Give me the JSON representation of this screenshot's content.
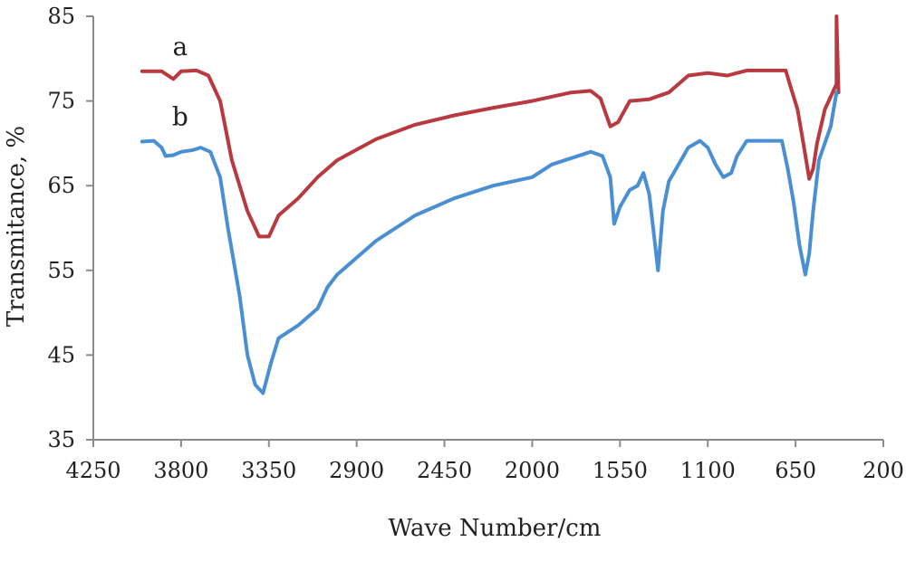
{
  "chart_data": {
    "type": "line",
    "title": "",
    "xlabel": "Wave Number/cm",
    "ylabel": "Transmitance, %",
    "xlim": [
      4250,
      200
    ],
    "ylim": [
      35,
      85
    ],
    "x_ticks": [
      "4250",
      "3800",
      "3350",
      "2900",
      "2450",
      "2000",
      "1550",
      "1100",
      "650",
      "200"
    ],
    "y_ticks": [
      "35",
      "45",
      "55",
      "65",
      "75",
      "85"
    ],
    "grid": false,
    "legend": "none",
    "series": [
      {
        "name": "a",
        "color": "#b8393f",
        "points": [
          [
            4000,
            78.5
          ],
          [
            3900,
            78.5
          ],
          [
            3840,
            77.6
          ],
          [
            3800,
            78.5
          ],
          [
            3720,
            78.6
          ],
          [
            3660,
            78.0
          ],
          [
            3600,
            75.0
          ],
          [
            3540,
            68.0
          ],
          [
            3460,
            62.0
          ],
          [
            3400,
            59.0
          ],
          [
            3350,
            59.0
          ],
          [
            3300,
            61.5
          ],
          [
            3200,
            63.5
          ],
          [
            3100,
            66.0
          ],
          [
            3000,
            68.0
          ],
          [
            2800,
            70.5
          ],
          [
            2600,
            72.2
          ],
          [
            2400,
            73.3
          ],
          [
            2200,
            74.2
          ],
          [
            2000,
            75.0
          ],
          [
            1800,
            76.0
          ],
          [
            1700,
            76.2
          ],
          [
            1650,
            75.3
          ],
          [
            1600,
            72.0
          ],
          [
            1560,
            72.5
          ],
          [
            1500,
            75.0
          ],
          [
            1400,
            75.2
          ],
          [
            1300,
            76.0
          ],
          [
            1200,
            78.0
          ],
          [
            1100,
            78.3
          ],
          [
            1000,
            78.0
          ],
          [
            950,
            78.3
          ],
          [
            900,
            78.6
          ],
          [
            700,
            78.6
          ],
          [
            680,
            77.0
          ],
          [
            640,
            74.0
          ],
          [
            610,
            70.0
          ],
          [
            580,
            65.8
          ],
          [
            560,
            67.0
          ],
          [
            540,
            70.0
          ],
          [
            500,
            74.0
          ],
          [
            460,
            76.0
          ],
          [
            440,
            77.0
          ],
          [
            440,
            85.0
          ],
          [
            430,
            76.0
          ]
        ]
      },
      {
        "name": "b",
        "color": "#4a8fd3",
        "points": [
          [
            4000,
            70.2
          ],
          [
            3940,
            70.3
          ],
          [
            3900,
            69.5
          ],
          [
            3880,
            68.5
          ],
          [
            3840,
            68.6
          ],
          [
            3800,
            69.0
          ],
          [
            3740,
            69.2
          ],
          [
            3700,
            69.5
          ],
          [
            3650,
            69.0
          ],
          [
            3600,
            66.0
          ],
          [
            3560,
            60.0
          ],
          [
            3500,
            52.0
          ],
          [
            3460,
            45.0
          ],
          [
            3420,
            41.5
          ],
          [
            3380,
            40.5
          ],
          [
            3340,
            44.0
          ],
          [
            3300,
            47.0
          ],
          [
            3200,
            48.5
          ],
          [
            3100,
            50.5
          ],
          [
            3050,
            53.0
          ],
          [
            3000,
            54.5
          ],
          [
            2900,
            56.5
          ],
          [
            2800,
            58.5
          ],
          [
            2600,
            61.5
          ],
          [
            2400,
            63.5
          ],
          [
            2200,
            65.0
          ],
          [
            2000,
            66.0
          ],
          [
            1900,
            67.5
          ],
          [
            1700,
            69.0
          ],
          [
            1640,
            68.5
          ],
          [
            1600,
            66.0
          ],
          [
            1580,
            60.5
          ],
          [
            1550,
            62.5
          ],
          [
            1500,
            64.5
          ],
          [
            1460,
            65.0
          ],
          [
            1430,
            66.5
          ],
          [
            1400,
            64.0
          ],
          [
            1370,
            58.0
          ],
          [
            1355,
            55.0
          ],
          [
            1330,
            62.0
          ],
          [
            1300,
            65.5
          ],
          [
            1200,
            69.5
          ],
          [
            1140,
            70.3
          ],
          [
            1100,
            69.5
          ],
          [
            1060,
            67.5
          ],
          [
            1020,
            66.0
          ],
          [
            980,
            66.5
          ],
          [
            950,
            68.5
          ],
          [
            900,
            70.3
          ],
          [
            720,
            70.3
          ],
          [
            690,
            67.0
          ],
          [
            660,
            63.0
          ],
          [
            630,
            58.0
          ],
          [
            600,
            54.5
          ],
          [
            580,
            57.0
          ],
          [
            560,
            62.0
          ],
          [
            530,
            68.0
          ],
          [
            500,
            70.0
          ],
          [
            470,
            72.0
          ],
          [
            440,
            76.0
          ]
        ]
      }
    ]
  }
}
